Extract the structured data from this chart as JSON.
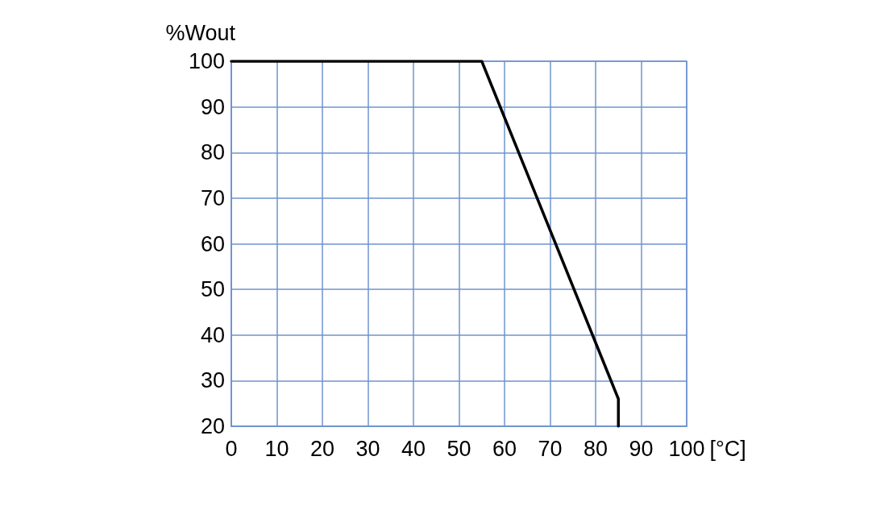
{
  "chart_data": {
    "type": "line",
    "xlabel": "[°C]",
    "ylabel": "%Wout",
    "series": [
      {
        "color": "#000000",
        "x": [
          0,
          55,
          85,
          85
        ],
        "values": [
          100,
          100,
          26,
          20
        ]
      }
    ],
    "xlim": [
      0,
      100
    ],
    "xticks": [
      0,
      10,
      20,
      30,
      40,
      50,
      60,
      70,
      80,
      90,
      100
    ],
    "ylim": [
      20,
      100
    ],
    "yticks": [
      20,
      30,
      40,
      50,
      60,
      70,
      80,
      90,
      100
    ],
    "grid": true,
    "marker": "none",
    "line_style": "solid"
  }
}
